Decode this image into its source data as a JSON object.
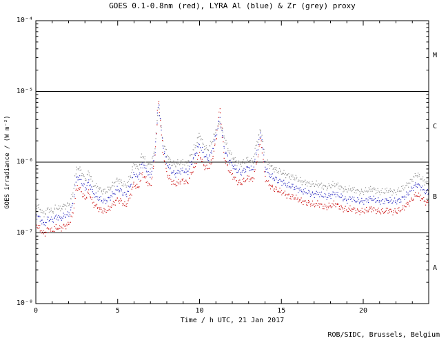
{
  "title": "GOES 0.1-0.8nm (red), LYRA Al (blue) & Zr (grey) proxy",
  "credit": "ROB/SIDC, Brussels, Belgium",
  "x_axis": {
    "label": "Time / h UTC, 21 Jan 2017",
    "major_ticks": [
      0,
      5,
      10,
      15,
      20
    ],
    "minor_step_hours": 1,
    "range_hours": [
      0,
      24
    ]
  },
  "y_axis": {
    "label": "GOES irradiance / (W m⁻²)",
    "tick_labels": [
      "10⁻⁸",
      "10⁻⁷",
      "10⁻⁶",
      "10⁻⁵",
      "10⁻⁴"
    ],
    "tick_exponents": [
      -8,
      -7,
      -6,
      -5,
      -4
    ],
    "boundary_exponents": [
      -7,
      -6,
      -5
    ]
  },
  "flare_classes": [
    {
      "label": "M",
      "center_exponent": -4.5
    },
    {
      "label": "C",
      "center_exponent": -5.5
    },
    {
      "label": "B",
      "center_exponent": -6.5
    },
    {
      "label": "A",
      "center_exponent": -7.5
    }
  ],
  "colors": {
    "goes": "#cc1111",
    "lyra_al": "#2f2fc2",
    "lyra_zr": "#8f8f8f",
    "axis": "#000000"
  },
  "chart_data": {
    "type": "scatter",
    "title": "GOES 0.1-0.8nm (red), LYRA Al (blue) & Zr (grey) proxy",
    "xlabel": "Time / h UTC, 21 Jan 2017",
    "ylabel": "GOES irradiance / (W m⁻²)",
    "x_range_hours": [
      0,
      24
    ],
    "y_range_exponents": [
      -8,
      -4
    ],
    "grid": false,
    "legend": "none (series identified by colour in title)",
    "x_start_hours": 0,
    "x_step_hours": 0.25,
    "series": [
      {
        "name": "LYRA Zr proxy",
        "color_key": "lyra_zr",
        "values": [
          2.5e-07,
          2.2e-07,
          1.8e-07,
          2.2e-07,
          2e-07,
          2.3e-07,
          2.2e-07,
          2.4e-07,
          2.5e-07,
          3.4e-07,
          8.5e-07,
          7.6e-07,
          5.7e-07,
          7.2e-07,
          4.9e-07,
          4.4e-07,
          4e-07,
          3.8e-07,
          4.2e-07,
          4.9e-07,
          5.7e-07,
          5.1e-07,
          4.6e-07,
          6.1e-07,
          9.5e-07,
          8e-07,
          1.3e-06,
          1e-06,
          8.6e-07,
          1.4e-06,
          6.5e-06,
          2e-06,
          1.3e-06,
          1e-06,
          9.1e-07,
          9.9e-07,
          1e-06,
          9.5e-07,
          1.3e-06,
          1.7e-06,
          2.5e-06,
          1.7e-06,
          1.5e-06,
          1.9e-06,
          2.8e-06,
          3.6e-06,
          2.3e-06,
          1.5e-06,
          1.2e-06,
          1e-06,
          9.5e-07,
          1e-06,
          1.1e-06,
          1e-06,
          1.9e-06,
          3e-06,
          1.1e-06,
          9.1e-07,
          8.2e-07,
          7.6e-07,
          7.2e-07,
          6.7e-07,
          6.3e-07,
          6.1e-07,
          5.7e-07,
          5.3e-07,
          5.1e-07,
          4.9e-07,
          4.8e-07,
          4.9e-07,
          4.6e-07,
          4.4e-07,
          4.6e-07,
          4.9e-07,
          4.6e-07,
          4.2e-07,
          4e-07,
          4.2e-07,
          4e-07,
          3.8e-07,
          3.8e-07,
          4e-07,
          4.2e-07,
          4e-07,
          3.8e-07,
          3.8e-07,
          4e-07,
          3.8e-07,
          3.8e-07,
          4e-07,
          4.4e-07,
          4.9e-07,
          5.7e-07,
          6.7e-07,
          6.1e-07,
          5.3e-07,
          4.9e-07
        ]
      },
      {
        "name": "LYRA Al proxy",
        "color_key": "lyra_al",
        "values": [
          1.8e-07,
          1.6e-07,
          1.3e-07,
          1.6e-07,
          1.5e-07,
          1.7e-07,
          1.6e-07,
          1.75e-07,
          1.8e-07,
          2.5e-07,
          6.3e-07,
          5.6e-07,
          4.2e-07,
          5.3e-07,
          3.6e-07,
          3.2e-07,
          2.9e-07,
          2.8e-07,
          3.1e-07,
          3.6e-07,
          4.2e-07,
          3.8e-07,
          3.4e-07,
          4.5e-07,
          7e-07,
          5.9e-07,
          9.8e-07,
          7.7e-07,
          6.3e-07,
          1.2e-06,
          7e-06,
          1.8e-06,
          9.8e-07,
          7.7e-07,
          6.7e-07,
          7.3e-07,
          7.7e-07,
          7e-07,
          9.8e-07,
          1.3e-06,
          1.8e-06,
          1.3e-06,
          1.1e-06,
          1.4e-06,
          2.4e-06,
          4.2e-06,
          1.6e-06,
          1.1e-06,
          9.1e-07,
          7.7e-07,
          7e-07,
          7.7e-07,
          8.4e-07,
          7.7e-07,
          1.4e-06,
          2.6e-06,
          8.4e-07,
          6.7e-07,
          6e-07,
          5.6e-07,
          5.3e-07,
          4.9e-07,
          4.6e-07,
          4.5e-07,
          4.2e-07,
          3.9e-07,
          3.8e-07,
          3.6e-07,
          3.5e-07,
          3.6e-07,
          3.4e-07,
          3.2e-07,
          3.4e-07,
          3.6e-07,
          3.4e-07,
          3.1e-07,
          2.9e-07,
          3.1e-07,
          2.9e-07,
          2.8e-07,
          2.8e-07,
          2.9e-07,
          3.1e-07,
          2.9e-07,
          2.8e-07,
          2.8e-07,
          2.9e-07,
          2.8e-07,
          2.8e-07,
          2.9e-07,
          3.2e-07,
          3.6e-07,
          4.2e-07,
          4.9e-07,
          4.5e-07,
          3.9e-07,
          3.6e-07
        ]
      },
      {
        "name": "GOES 0.1-0.8nm",
        "color_key": "goes",
        "values": [
          1.3e-07,
          1.15e-07,
          9.5e-08,
          1.15e-07,
          1.05e-07,
          1.2e-07,
          1.15e-07,
          1.25e-07,
          1.3e-07,
          1.8e-07,
          4.5e-07,
          4e-07,
          3e-07,
          3.8e-07,
          2.6e-07,
          2.3e-07,
          2.1e-07,
          2e-07,
          2.2e-07,
          2.6e-07,
          3e-07,
          2.7e-07,
          2.4e-07,
          3.2e-07,
          5e-07,
          4.2e-07,
          7e-07,
          5.5e-07,
          4.5e-07,
          1e-06,
          8e-06,
          1.5e-06,
          7e-07,
          5.5e-07,
          4.8e-07,
          5.2e-07,
          5.5e-07,
          5e-07,
          7e-07,
          9e-07,
          1.3e-06,
          9e-07,
          8e-07,
          1e-06,
          2e-06,
          6e-06,
          1.2e-06,
          8e-07,
          6.5e-07,
          5.5e-07,
          5e-07,
          5.5e-07,
          6e-07,
          5.5e-07,
          1e-06,
          2.2e-06,
          6e-07,
          4.8e-07,
          4.3e-07,
          4e-07,
          3.8e-07,
          3.5e-07,
          3.3e-07,
          3.2e-07,
          3e-07,
          2.8e-07,
          2.7e-07,
          2.6e-07,
          2.5e-07,
          2.6e-07,
          2.4e-07,
          2.3e-07,
          2.4e-07,
          2.6e-07,
          2.4e-07,
          2.2e-07,
          2.1e-07,
          2.2e-07,
          2.1e-07,
          2e-07,
          2e-07,
          2.1e-07,
          2.2e-07,
          2.1e-07,
          2e-07,
          2e-07,
          2.1e-07,
          2e-07,
          2e-07,
          2.1e-07,
          2.3e-07,
          2.6e-07,
          3e-07,
          3.5e-07,
          3.2e-07,
          2.8e-07,
          2.6e-07
        ]
      }
    ]
  }
}
